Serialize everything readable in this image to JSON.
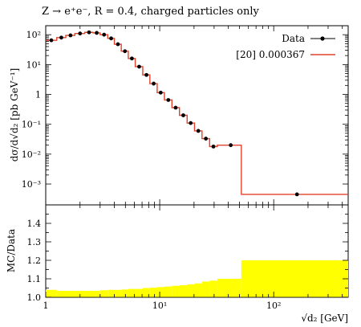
{
  "chart_data": [
    {
      "type": "line",
      "title": "Z → e⁺e⁻, R = 0.4, charged particles only",
      "xlabel": "√d₂ [GeV]",
      "ylabel": "dσ/d√d₂ [pb GeV⁻¹]",
      "xscale": "log",
      "yscale": "log",
      "xlim": [
        1,
        450
      ],
      "ylim": [
        0.0002,
        200
      ],
      "grid": false,
      "legend_position": "top-right",
      "x_edges": [
        1,
        1.25,
        1.5,
        1.8,
        2.2,
        2.6,
        3.0,
        3.5,
        4.0,
        4.6,
        5.3,
        6.1,
        7.1,
        8.2,
        9.5,
        11.0,
        12.8,
        14.9,
        17.4,
        20.2,
        23.5,
        27.4,
        32.0,
        52.0,
        450
      ],
      "x_centers": [
        1.12,
        1.37,
        1.65,
        2.0,
        2.4,
        2.8,
        3.25,
        3.75,
        4.3,
        4.95,
        5.7,
        6.6,
        7.65,
        8.85,
        10.2,
        11.9,
        13.8,
        16.1,
        18.7,
        21.8,
        25.4,
        29.6,
        42.0,
        160.0
      ],
      "series": [
        {
          "name": "Data",
          "marker": "dot",
          "color": "#000000",
          "values": [
            65,
            80,
            95,
            110,
            120,
            115,
            100,
            75,
            48,
            28,
            16,
            8.5,
            4.5,
            2.3,
            1.15,
            0.65,
            0.36,
            0.2,
            0.11,
            0.06,
            0.033,
            0.018,
            0.02,
            0.00045
          ]
        },
        {
          "name": "[20] 0.000367",
          "marker": "step",
          "color": "#e2422b",
          "values": [
            65,
            80,
            95,
            110,
            120,
            115,
            100,
            75,
            48,
            28,
            16,
            8.5,
            4.5,
            2.3,
            1.15,
            0.65,
            0.36,
            0.2,
            0.11,
            0.06,
            0.033,
            0.018,
            0.02,
            0.00045
          ]
        }
      ],
      "yticks": [
        "10⁻³",
        "10⁻²",
        "10⁻¹",
        "1",
        "10¹",
        "10²"
      ]
    },
    {
      "type": "area",
      "ylabel": "MC/Data",
      "xlabel": "√d₂ [GeV]",
      "xscale": "log",
      "xlim": [
        1,
        450
      ],
      "ylim": [
        1.0,
        1.5
      ],
      "yticks": [
        "1.0",
        "1.1",
        "1.2",
        "1.3",
        "1.4"
      ],
      "xticks": [
        "1",
        "10¹",
        "10²"
      ],
      "band_color": "#ffff00",
      "x_edges": [
        1,
        1.25,
        1.5,
        1.8,
        2.2,
        2.6,
        3.0,
        3.5,
        4.0,
        4.6,
        5.3,
        6.1,
        7.1,
        8.2,
        9.5,
        11.0,
        12.8,
        14.9,
        17.4,
        20.2,
        23.5,
        27.4,
        32.0,
        52.0,
        450
      ],
      "band_upper": [
        1.04,
        1.035,
        1.035,
        1.035,
        1.035,
        1.035,
        1.038,
        1.04,
        1.04,
        1.042,
        1.045,
        1.045,
        1.05,
        1.052,
        1.055,
        1.058,
        1.062,
        1.065,
        1.07,
        1.075,
        1.085,
        1.09,
        1.1,
        1.2
      ],
      "band_lower": [
        1.0,
        1.0,
        1.0,
        1.0,
        1.0,
        1.0,
        1.0,
        1.0,
        1.0,
        1.0,
        1.0,
        1.0,
        1.0,
        1.0,
        1.0,
        1.0,
        1.0,
        1.0,
        1.0,
        1.0,
        1.0,
        1.0,
        1.0,
        1.0
      ]
    }
  ]
}
